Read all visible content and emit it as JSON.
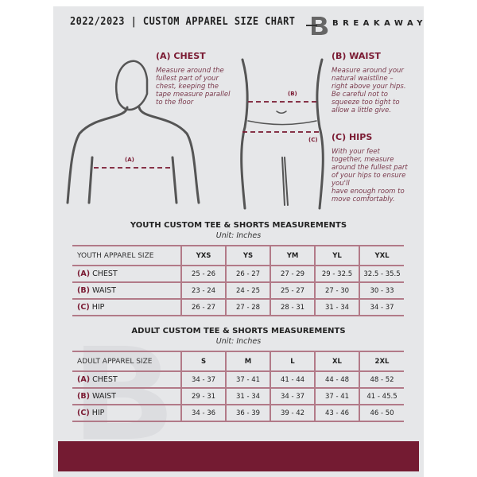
{
  "header": {
    "title": "2022/2023 | CUSTOM APPAREL SIZE CHART",
    "brand": "BREAKAWAY"
  },
  "colors": {
    "accent": "#741b32",
    "background": "#e6e7e9"
  },
  "guide": {
    "chest": {
      "title": "(A) CHEST",
      "marker": "(A)",
      "text": [
        "Measure around the",
        "fullest part of your",
        "chest, keeping the",
        "tape measure parallel",
        "to the floor"
      ]
    },
    "waist": {
      "title": "(B) WAIST",
      "marker": "(B)",
      "text": [
        "Measure around your",
        "natural waistline –",
        "right above your hips.",
        "Be careful not to",
        "squeeze too tight to",
        "allow a little give."
      ]
    },
    "hips": {
      "title": "(C) HIPS",
      "marker": "(C)",
      "text": [
        "With your feet",
        "together, measure",
        "around the fullest part",
        "of your hips to ensure",
        "you'll",
        "have enough room to",
        "move comfortably."
      ]
    }
  },
  "youth": {
    "title": "YOUTH CUSTOM TEE & SHORTS MEASUREMENTS",
    "unit": "Unit: Inches",
    "header": "YOUTH APPAREL SIZE",
    "sizes": [
      "YXS",
      "YS",
      "YM",
      "YL",
      "YXL"
    ],
    "rows": [
      {
        "code": "(A)",
        "name": "CHEST",
        "values": [
          "25 - 26",
          "26 - 27",
          "27 - 29",
          "29 - 32.5",
          "32.5 - 35.5"
        ]
      },
      {
        "code": "(B)",
        "name": "WAIST",
        "values": [
          "23 - 24",
          "24 - 25",
          "25 - 27",
          "27 - 30",
          "30 - 33"
        ]
      },
      {
        "code": "(C)",
        "name": "HIP",
        "values": [
          "26 - 27",
          "27 - 28",
          "28 - 31",
          "31 - 34",
          "34 - 37"
        ]
      }
    ]
  },
  "adult": {
    "title": "ADULT CUSTOM TEE & SHORTS MEASUREMENTS",
    "unit": "Unit: Inches",
    "header": "ADULT APPAREL SIZE",
    "sizes": [
      "S",
      "M",
      "L",
      "XL",
      "2XL"
    ],
    "rows": [
      {
        "code": "(A)",
        "name": "CHEST",
        "values": [
          "34 - 37",
          "37 - 41",
          "41 - 44",
          "44 - 48",
          "48 - 52"
        ]
      },
      {
        "code": "(B)",
        "name": "WAIST",
        "values": [
          "29 - 31",
          "31 - 34",
          "34 - 37",
          "37 - 41",
          "41 - 45.5"
        ]
      },
      {
        "code": "(C)",
        "name": "HIP",
        "values": [
          "34 - 36",
          "36 - 39",
          "39 - 42",
          "43 - 46",
          "46 - 50"
        ]
      }
    ]
  }
}
